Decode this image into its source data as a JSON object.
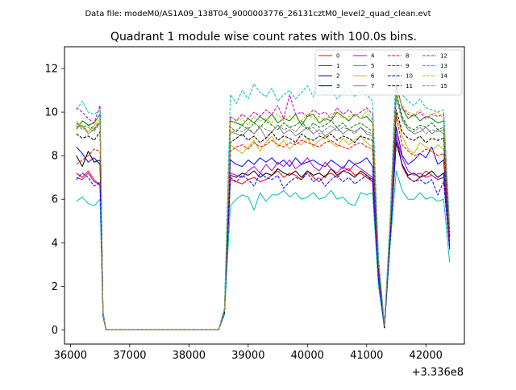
{
  "header": {
    "suptitle": "Data file: modeM0/AS1A09_138T04_9000003776_26131cztM0_level2_quad_clean.evt"
  },
  "chart_data": {
    "type": "line",
    "title": "Quadrant 1 module wise count rates with 100.0s bins.",
    "xlabel": "",
    "ylabel": "",
    "x_offset_label": "+3.336e8",
    "xlim": [
      35900,
      42650
    ],
    "ylim": [
      -0.65,
      13.0
    ],
    "xticks": [
      36000,
      37000,
      38000,
      39000,
      40000,
      41000,
      42000
    ],
    "xtick_labels": [
      "36000",
      "37000",
      "38000",
      "39000",
      "40000",
      "41000",
      "42000"
    ],
    "yticks": [
      0,
      2,
      4,
      6,
      8,
      10,
      12
    ],
    "ytick_labels": [
      "0",
      "2",
      "4",
      "6",
      "8",
      "10",
      "12"
    ],
    "grid": false,
    "legend_placement": "top-right",
    "legend_columns": 4,
    "x": [
      36100,
      36200,
      36300,
      36400,
      36500,
      36550,
      36600,
      36700,
      36800,
      36900,
      37000,
      37100,
      37200,
      37300,
      37400,
      37500,
      37600,
      37700,
      37800,
      37900,
      38000,
      38100,
      38200,
      38300,
      38400,
      38500,
      38600,
      38700,
      38800,
      38900,
      39000,
      39100,
      39200,
      39300,
      39400,
      39500,
      39600,
      39700,
      39800,
      39900,
      40000,
      40100,
      40200,
      40300,
      40400,
      40500,
      40600,
      40700,
      40800,
      40900,
      41000,
      41100,
      41200,
      41300,
      41400,
      41500,
      41600,
      41700,
      41800,
      41900,
      42000,
      42100,
      42200,
      42300,
      42400
    ],
    "series": [
      {
        "name": "0",
        "color": "#ff0000",
        "dash": "solid",
        "values": [
          7.2,
          7.0,
          7.3,
          6.9,
          6.6,
          0.7,
          0.0,
          0,
          0,
          0,
          0,
          0,
          0,
          0,
          0,
          0,
          0,
          0,
          0,
          0,
          0,
          0,
          0,
          0,
          0,
          0,
          0.8,
          6.9,
          6.8,
          6.7,
          6.9,
          7.0,
          6.8,
          6.9,
          7.1,
          7.3,
          7.0,
          7.2,
          7.1,
          6.9,
          7.3,
          7.0,
          6.8,
          7.1,
          7.2,
          7.0,
          7.3,
          7.4,
          7.1,
          7.2,
          7.0,
          6.8,
          2.5,
          0.1,
          4.5,
          9.0,
          7.5,
          7.0,
          6.8,
          7.0,
          7.3,
          7.1,
          6.9,
          7.0,
          3.9
        ]
      },
      {
        "name": "1",
        "color": "#008000",
        "dash": "solid",
        "values": [
          9.2,
          9.6,
          9.4,
          9.5,
          9.9,
          0.8,
          0.0,
          0,
          0,
          0,
          0,
          0,
          0,
          0,
          0,
          0,
          0,
          0,
          0,
          0,
          0,
          0,
          0,
          0,
          0,
          0,
          0.9,
          9.6,
          9.5,
          9.4,
          9.7,
          9.5,
          9.8,
          9.6,
          9.9,
          9.5,
          9.7,
          9.6,
          9.9,
          9.4,
          9.8,
          9.9,
          9.5,
          9.7,
          9.6,
          10.0,
          9.8,
          9.6,
          9.9,
          9.7,
          9.8,
          9.5,
          3.2,
          0.2,
          5.0,
          11.2,
          10.2,
          9.7,
          9.9,
          9.6,
          9.8,
          9.7,
          9.5,
          9.6,
          4.6
        ]
      },
      {
        "name": "2",
        "color": "#0000ff",
        "dash": "solid",
        "values": [
          8.4,
          8.1,
          7.7,
          7.9,
          7.6,
          0.8,
          0.0,
          0,
          0,
          0,
          0,
          0,
          0,
          0,
          0,
          0,
          0,
          0,
          0,
          0,
          0,
          0,
          0,
          0,
          0,
          0,
          0.8,
          7.8,
          7.6,
          7.5,
          7.8,
          7.6,
          7.9,
          7.7,
          7.9,
          7.6,
          7.8,
          7.5,
          7.9,
          7.6,
          7.7,
          7.8,
          7.6,
          7.5,
          7.8,
          7.6,
          7.4,
          7.8,
          7.6,
          7.7,
          7.9,
          7.5,
          2.8,
          0.1,
          4.7,
          9.3,
          8.0,
          7.6,
          7.8,
          8.1,
          7.9,
          8.4,
          7.6,
          7.8,
          4.0
        ]
      },
      {
        "name": "3",
        "color": "#000000",
        "dash": "solid",
        "values": [
          8.0,
          7.5,
          8.2,
          7.7,
          7.8,
          0.7,
          0.0,
          0,
          0,
          0,
          0,
          0,
          0,
          0,
          0,
          0,
          0,
          0,
          0,
          0,
          0,
          0,
          0,
          0,
          0,
          0,
          0.8,
          7.1,
          7.0,
          7.2,
          7.1,
          7.3,
          7.0,
          7.2,
          7.1,
          7.4,
          7.2,
          7.1,
          7.3,
          7.0,
          7.3,
          7.1,
          7.2,
          7.0,
          7.4,
          7.1,
          7.3,
          7.2,
          7.0,
          7.3,
          7.1,
          6.9,
          2.4,
          0.1,
          4.3,
          8.6,
          7.6,
          7.1,
          7.2,
          7.0,
          7.1,
          7.3,
          7.0,
          7.2,
          3.8
        ]
      },
      {
        "name": "4",
        "color": "#bf00bf",
        "dash": "solid",
        "values": [
          7.0,
          6.9,
          7.2,
          6.8,
          6.7,
          0.7,
          0.0,
          0,
          0,
          0,
          0,
          0,
          0,
          0,
          0,
          0,
          0,
          0,
          0,
          0,
          0,
          0,
          0,
          0,
          0,
          0,
          0.8,
          7.2,
          7.1,
          7.0,
          7.3,
          7.5,
          7.2,
          7.6,
          7.3,
          7.7,
          7.5,
          7.8,
          7.4,
          7.6,
          7.9,
          7.5,
          7.3,
          7.7,
          7.4,
          7.2,
          7.5,
          7.3,
          7.6,
          7.4,
          7.2,
          7.0,
          2.5,
          0.1,
          4.4,
          8.9,
          7.9,
          7.3,
          7.1,
          7.2,
          7.0,
          7.1,
          6.9,
          7.0,
          3.9
        ]
      },
      {
        "name": "5",
        "color": "#00bfbf",
        "dash": "solid",
        "values": [
          5.9,
          6.1,
          5.8,
          5.7,
          6.0,
          0.6,
          0.0,
          0,
          0,
          0,
          0,
          0,
          0,
          0,
          0,
          0,
          0,
          0,
          0,
          0,
          0,
          0,
          0,
          0,
          0,
          0,
          0.7,
          5.7,
          6.0,
          6.2,
          6.1,
          5.5,
          6.3,
          5.9,
          6.2,
          6.2,
          6.4,
          6.1,
          6.3,
          6.0,
          6.1,
          6.3,
          6.0,
          6.1,
          6.4,
          6.0,
          6.1,
          5.8,
          5.7,
          6.3,
          6.2,
          6.3,
          2.0,
          0.1,
          4.0,
          7.3,
          6.4,
          6.0,
          6.0,
          6.3,
          6.0,
          6.1,
          5.9,
          6.0,
          3.1
        ]
      },
      {
        "name": "6",
        "color": "#bfbf00",
        "dash": "solid",
        "values": [
          9.6,
          9.3,
          9.1,
          9.4,
          9.7,
          0.8,
          0.0,
          0,
          0,
          0,
          0,
          0,
          0,
          0,
          0,
          0,
          0,
          0,
          0,
          0,
          0,
          0,
          0,
          0,
          0,
          0,
          0.8,
          8.5,
          8.3,
          8.1,
          8.4,
          8.7,
          8.2,
          8.6,
          8.9,
          8.4,
          8.7,
          8.3,
          8.6,
          8.5,
          8.8,
          8.4,
          8.7,
          8.9,
          8.6,
          8.4,
          8.8,
          8.5,
          8.7,
          8.9,
          8.6,
          8.4,
          2.9,
          0.2,
          4.8,
          10.0,
          8.9,
          8.3,
          8.1,
          8.6,
          8.4,
          8.2,
          8.5,
          8.3,
          4.3
        ]
      },
      {
        "name": "7",
        "color": "#808080",
        "dash": "solid",
        "values": [
          9.3,
          9.4,
          9.0,
          9.2,
          9.5,
          0.8,
          0.0,
          0,
          0,
          0,
          0,
          0,
          0,
          0,
          0,
          0,
          0,
          0,
          0,
          0,
          0,
          0,
          0,
          0,
          0,
          0,
          0.9,
          9.1,
          9.0,
          8.9,
          9.2,
          9.0,
          9.3,
          8.8,
          9.1,
          9.4,
          9.0,
          9.2,
          8.9,
          9.1,
          9.3,
          9.0,
          9.2,
          8.9,
          9.1,
          9.3,
          9.0,
          9.2,
          9.1,
          9.3,
          9.0,
          8.9,
          3.0,
          0.2,
          4.9,
          10.8,
          9.7,
          9.2,
          9.0,
          9.1,
          9.3,
          9.0,
          9.2,
          9.0,
          4.4
        ]
      },
      {
        "name": "8",
        "color": "#ff0000",
        "dash": "dashed",
        "values": [
          7.6,
          7.8,
          8.0,
          8.3,
          8.2,
          0.7,
          0.0,
          0,
          0,
          0,
          0,
          0,
          0,
          0,
          0,
          0,
          0,
          0,
          0,
          0,
          0,
          0,
          0,
          0,
          0,
          0,
          0.8,
          8.2,
          8.4,
          8.5,
          8.3,
          8.6,
          8.4,
          8.5,
          8.7,
          8.5,
          8.4,
          8.6,
          8.5,
          8.7,
          8.6,
          8.5,
          8.4,
          8.6,
          8.7,
          8.5,
          8.4,
          8.3,
          8.5,
          8.6,
          8.4,
          8.3,
          2.8,
          0.1,
          4.6,
          9.8,
          8.5,
          8.2,
          8.0,
          8.1,
          8.3,
          8.2,
          8.0,
          8.1,
          4.2
        ]
      },
      {
        "name": "9",
        "color": "#008000",
        "dash": "dashed",
        "values": [
          9.5,
          9.3,
          9.4,
          9.2,
          9.6,
          0.8,
          0.0,
          0,
          0,
          0,
          0,
          0,
          0,
          0,
          0,
          0,
          0,
          0,
          0,
          0,
          0,
          0,
          0,
          0,
          0,
          0,
          0.9,
          9.3,
          9.1,
          9.4,
          9.2,
          9.5,
          9.3,
          9.6,
          9.4,
          9.2,
          9.5,
          9.3,
          9.4,
          9.6,
          9.2,
          9.5,
          9.3,
          9.4,
          9.6,
          9.3,
          9.5,
          9.2,
          9.4,
          9.5,
          9.3,
          9.1,
          3.1,
          0.2,
          5.0,
          10.9,
          9.8,
          9.3,
          9.2,
          9.4,
          9.3,
          9.5,
          9.2,
          9.3,
          4.5
        ]
      },
      {
        "name": "10",
        "color": "#0000ff",
        "dash": "dashed",
        "values": [
          6.9,
          7.2,
          7.0,
          6.6,
          6.8,
          0.7,
          0.0,
          0,
          0,
          0,
          0,
          0,
          0,
          0,
          0,
          0,
          0,
          0,
          0,
          0,
          0,
          0,
          0,
          0,
          0,
          0,
          0.8,
          7.0,
          6.8,
          7.1,
          6.9,
          6.6,
          7.2,
          7.0,
          6.9,
          7.1,
          6.5,
          6.8,
          7.0,
          6.9,
          7.2,
          6.8,
          7.0,
          6.6,
          6.9,
          7.1,
          6.8,
          7.0,
          6.7,
          6.9,
          7.1,
          6.8,
          2.3,
          0.1,
          4.2,
          8.7,
          7.6,
          7.0,
          6.8,
          6.9,
          6.7,
          6.9,
          6.2,
          6.8,
          3.7
        ]
      },
      {
        "name": "11",
        "color": "#000000",
        "dash": "dashed",
        "values": [
          9.0,
          8.8,
          8.9,
          8.7,
          9.1,
          0.8,
          0.0,
          0,
          0,
          0,
          0,
          0,
          0,
          0,
          0,
          0,
          0,
          0,
          0,
          0,
          0,
          0,
          0,
          0,
          0,
          0,
          0.8,
          8.6,
          8.8,
          9.0,
          8.7,
          8.9,
          8.6,
          8.8,
          9.1,
          8.7,
          8.9,
          8.8,
          8.6,
          9.0,
          8.8,
          8.7,
          8.9,
          8.8,
          9.0,
          8.7,
          8.9,
          8.8,
          8.6,
          8.9,
          8.8,
          8.7,
          2.9,
          0.1,
          4.8,
          10.1,
          9.1,
          8.8,
          8.7,
          8.9,
          8.6,
          8.8,
          8.7,
          8.8,
          4.3
        ]
      },
      {
        "name": "12",
        "color": "#bf00bf",
        "dash": "dashed",
        "values": [
          10.2,
          10.0,
          9.7,
          9.5,
          10.3,
          0.8,
          0.0,
          0,
          0,
          0,
          0,
          0,
          0,
          0,
          0,
          0,
          0,
          0,
          0,
          0,
          0,
          0,
          0,
          0,
          0,
          0,
          0.9,
          9.8,
          9.6,
          9.9,
          9.7,
          10.0,
          9.8,
          10.1,
          9.9,
          10.3,
          9.7,
          10.8,
          9.9,
          10.0,
          9.8,
          10.1,
          9.9,
          10.0,
          9.7,
          10.2,
          9.9,
          10.1,
          9.8,
          10.0,
          10.2,
          9.9,
          3.2,
          0.2,
          5.1,
          11.3,
          10.2,
          9.9,
          9.8,
          10.0,
          9.7,
          9.9,
          9.8,
          9.9,
          4.7
        ]
      },
      {
        "name": "13",
        "color": "#00bfbf",
        "dash": "dashed",
        "values": [
          10.1,
          10.5,
          10.0,
          9.9,
          10.1,
          0.9,
          0.0,
          0,
          0,
          0,
          0,
          0,
          0,
          0,
          0,
          0,
          0,
          0,
          0,
          0,
          0,
          0,
          0,
          0,
          0,
          0,
          1.0,
          10.8,
          10.4,
          11.0,
          10.6,
          11.3,
          10.9,
          10.7,
          11.1,
          10.5,
          10.8,
          11.0,
          10.6,
          10.9,
          11.2,
          10.7,
          11.5,
          10.8,
          11.0,
          10.6,
          10.9,
          11.1,
          10.7,
          11.0,
          10.8,
          10.5,
          3.4,
          0.2,
          5.4,
          12.3,
          10.8,
          10.5,
          10.3,
          10.6,
          10.2,
          10.1,
          10.0,
          10.1,
          4.8
        ]
      },
      {
        "name": "14",
        "color": "#bfbf00",
        "dash": "dashed",
        "values": [
          9.2,
          9.4,
          9.1,
          9.3,
          9.6,
          0.8,
          0.0,
          0,
          0,
          0,
          0,
          0,
          0,
          0,
          0,
          0,
          0,
          0,
          0,
          0,
          0,
          0,
          0,
          0,
          0,
          0,
          0.9,
          9.5,
          9.6,
          9.7,
          9.4,
          9.8,
          9.6,
          9.7,
          9.5,
          9.9,
          9.6,
          9.8,
          9.7,
          9.6,
          9.9,
          9.7,
          9.8,
          9.6,
          9.9,
          10.0,
          9.7,
          9.8,
          9.9,
          9.7,
          10.1,
          9.6,
          3.2,
          0.2,
          5.1,
          11.0,
          10.3,
          10.0,
          9.9,
          10.1,
          9.8,
          9.9,
          10.0,
          9.7,
          4.6
        ]
      },
      {
        "name": "15",
        "color": "#808080",
        "dash": "dashed",
        "values": [
          9.4,
          9.2,
          9.3,
          9.1,
          9.5,
          0.8,
          0.0,
          0,
          0,
          0,
          0,
          0,
          0,
          0,
          0,
          0,
          0,
          0,
          0,
          0,
          0,
          0,
          0,
          0,
          0,
          0,
          0.9,
          9.0,
          9.2,
          9.1,
          9.3,
          9.0,
          9.4,
          9.2,
          9.1,
          9.4,
          9.2,
          9.3,
          9.1,
          9.4,
          9.2,
          9.3,
          9.0,
          9.2,
          9.4,
          9.1,
          9.3,
          9.2,
          9.0,
          9.3,
          9.1,
          9.0,
          3.0,
          0.2,
          4.9,
          10.6,
          9.6,
          9.2,
          9.1,
          9.3,
          9.0,
          9.2,
          9.1,
          9.2,
          4.4
        ]
      }
    ]
  }
}
